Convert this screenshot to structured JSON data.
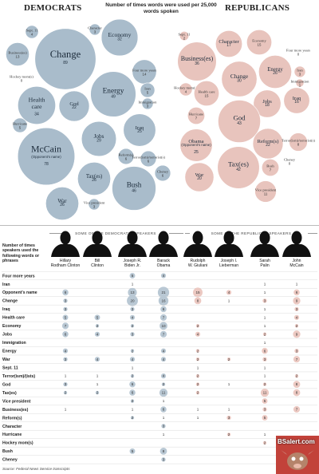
{
  "header": {
    "democrats": "DEMOCRATS",
    "republicans": "REPUBLICANS",
    "subtitle": "Number of times words were used per 25,000 words spoken"
  },
  "colors": {
    "dem_bubble": "#a9bccb",
    "rep_bubble": "#e8c4bd",
    "dem_cell": "#b9c8d4",
    "rep_cell": "#ecc9c2"
  },
  "groups": {
    "dem": "SOME OF THE DEMOCRATIC SPEAKERS",
    "rep": "SOME OF THE REPUBLICAN SPEAKERS"
  },
  "left_note": "Number of times speakers used the following words or phrases",
  "source": "Source: Federal News Service transcripts",
  "watermark": "BSalert.com",
  "chart_data": [
    {
      "type": "bubble",
      "title": "DEMOCRATS",
      "items": [
        {
          "label": "Change",
          "value": 89
        },
        {
          "label": "Economy",
          "value": 32
        },
        {
          "label": "Energy",
          "value": 49
        },
        {
          "label": "Health care",
          "value": 34
        },
        {
          "label": "McCain",
          "value": 78,
          "sublabel": "(Opponent's name)"
        },
        {
          "label": "Jobs",
          "value": 29
        },
        {
          "label": "Iraq",
          "value": 25
        },
        {
          "label": "God",
          "value": 22
        },
        {
          "label": "Tax(es)",
          "value": 26
        },
        {
          "label": "Bush",
          "value": 46
        },
        {
          "label": "War",
          "value": 26
        },
        {
          "label": "Business(es)",
          "value": 13
        },
        {
          "label": "Four more years",
          "value": 14
        },
        {
          "label": "Character",
          "value": 3
        },
        {
          "label": "Sept. 11",
          "value": 4
        },
        {
          "label": "Hockey mom(s)",
          "value": 0
        },
        {
          "label": "Hurricane",
          "value": 5
        },
        {
          "label": "Iran",
          "value": 5
        },
        {
          "label": "Immigration",
          "value": 3
        },
        {
          "label": "Reform(s)",
          "value": 6
        },
        {
          "label": "Terror(ism)/terrorist(s)",
          "value": 6
        },
        {
          "label": "Cheney",
          "value": 6
        },
        {
          "label": "Vice president",
          "value": 3
        }
      ]
    },
    {
      "type": "bubble",
      "title": "REPUBLICANS",
      "items": [
        {
          "label": "Sept. 11",
          "value": 2
        },
        {
          "label": "Character",
          "value": 17
        },
        {
          "label": "Economy",
          "value": 15
        },
        {
          "label": "Four more years",
          "value": 0
        },
        {
          "label": "Business(es)",
          "value": 36
        },
        {
          "label": "Energy",
          "value": 26
        },
        {
          "label": "Iran",
          "value": 3
        },
        {
          "label": "Immigration",
          "value": 1
        },
        {
          "label": "Hockey mom(s)",
          "value": 4
        },
        {
          "label": "Health care",
          "value": 15
        },
        {
          "label": "Change",
          "value": 30
        },
        {
          "label": "Iraq",
          "value": 16
        },
        {
          "label": "Jobs",
          "value": 18
        },
        {
          "label": "Hurricane",
          "value": 7
        },
        {
          "label": "God",
          "value": 43
        },
        {
          "label": "Obama",
          "value": 25,
          "sublabel": "(Opponent's name)"
        },
        {
          "label": "Reform(s)",
          "value": 22
        },
        {
          "label": "Terror(ism)/terrorist(s)",
          "value": 8
        },
        {
          "label": "Bush",
          "value": 7
        },
        {
          "label": "Cheney",
          "value": 0
        },
        {
          "label": "War",
          "value": 20
        },
        {
          "label": "Tax(es)",
          "value": 42
        },
        {
          "label": "Vice president",
          "value": 11
        }
      ]
    },
    {
      "type": "table",
      "speakers": [
        {
          "name": "Hillary Rodham Clinton",
          "party": "dem"
        },
        {
          "name": "Bill Clinton",
          "party": "dem"
        },
        {
          "name": "Joseph R. Biden Jr.",
          "party": "dem"
        },
        {
          "name": "Barack Obama",
          "party": "dem"
        },
        {
          "name": "Rudolph W. Giuliani",
          "party": "rep"
        },
        {
          "name": "Joseph I. Lieberman",
          "party": "rep"
        },
        {
          "name": "Sarah Palin",
          "party": "rep"
        },
        {
          "name": "John McCain",
          "party": "rep"
        }
      ],
      "rows": [
        {
          "label": "Four more years",
          "values": [
            null,
            null,
            5,
            4,
            null,
            null,
            null,
            null
          ]
        },
        {
          "label": "Iran",
          "values": [
            null,
            null,
            1,
            null,
            null,
            null,
            1,
            1
          ]
        },
        {
          "label": "Opponent's name",
          "values": [
            6,
            null,
            13,
            21,
            15,
            4,
            1,
            6
          ]
        },
        {
          "label": "Change",
          "values": [
            3,
            null,
            20,
            16,
            8,
            1,
            3,
            9
          ]
        },
        {
          "label": "Iraq",
          "values": [
            3,
            null,
            3,
            6,
            null,
            null,
            1,
            3
          ]
        },
        {
          "label": "Health care",
          "values": [
            5,
            5,
            4,
            7,
            null,
            null,
            1,
            4
          ]
        },
        {
          "label": "Economy",
          "values": [
            7,
            2,
            2,
            10,
            2,
            null,
            1,
            2
          ]
        },
        {
          "label": "Jobs",
          "values": [
            6,
            4,
            3,
            7,
            4,
            null,
            2,
            9
          ]
        },
        {
          "label": "Immigration",
          "values": [
            null,
            null,
            null,
            null,
            null,
            null,
            1,
            null
          ]
        },
        {
          "label": "Energy",
          "values": [
            4,
            null,
            2,
            4,
            2,
            null,
            6,
            3
          ]
        },
        {
          "label": "War",
          "values": [
            3,
            4,
            4,
            4,
            2,
            2,
            3,
            7
          ]
        },
        {
          "label": "Sept. 11",
          "values": [
            null,
            null,
            1,
            null,
            1,
            null,
            1,
            null
          ]
        },
        {
          "label": "Terror(ism)/(ists)",
          "values": [
            1,
            1,
            2,
            4,
            2,
            null,
            1,
            2
          ]
        },
        {
          "label": "God",
          "values": [
            3,
            1,
            6,
            2,
            2,
            1,
            2,
            8
          ]
        },
        {
          "label": "Tax(es)",
          "values": [
            2,
            2,
            6,
            11,
            2,
            null,
            11,
            8
          ]
        },
        {
          "label": "Vice president",
          "values": [
            null,
            null,
            2,
            1,
            null,
            null,
            5,
            null
          ]
        },
        {
          "label": "Business(es)",
          "values": [
            1,
            null,
            1,
            6,
            1,
            1,
            3,
            7
          ]
        },
        {
          "label": "Reform(s)",
          "values": [
            null,
            null,
            2,
            1,
            1,
            3,
            5,
            null
          ]
        },
        {
          "label": "Character",
          "values": [
            null,
            null,
            null,
            3,
            null,
            null,
            null,
            null
          ]
        },
        {
          "label": "Hurricane",
          "values": [
            null,
            null,
            null,
            1,
            null,
            2,
            1,
            null
          ]
        },
        {
          "label": "Hockey mom(s)",
          "values": [
            null,
            null,
            null,
            null,
            null,
            null,
            2,
            null
          ]
        },
        {
          "label": "Bush",
          "values": [
            null,
            null,
            5,
            8,
            null,
            null,
            null,
            null
          ]
        },
        {
          "label": "Cheney",
          "values": [
            null,
            null,
            null,
            3,
            null,
            null,
            null,
            null
          ]
        }
      ]
    }
  ]
}
